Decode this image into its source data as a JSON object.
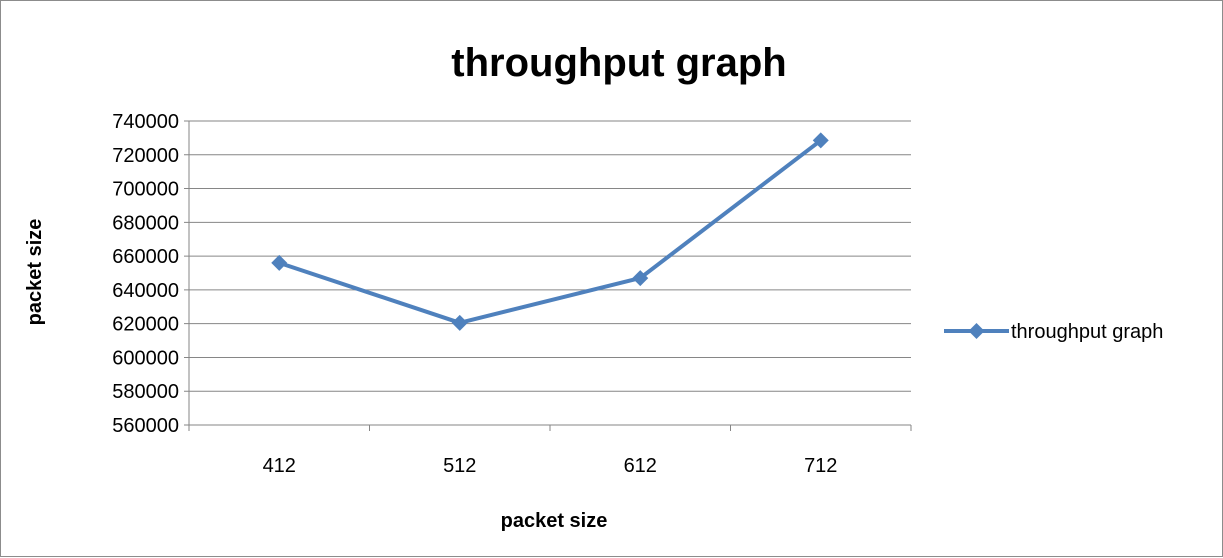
{
  "chart_data": {
    "type": "line",
    "title": "throughput graph",
    "xlabel": "packet size",
    "ylabel": "packet size",
    "categories": [
      "412",
      "512",
      "612",
      "712"
    ],
    "series": [
      {
        "name": "throughput graph",
        "values": [
          656000,
          620500,
          647000,
          728500
        ],
        "color": "#4f81bd",
        "marker": "diamond"
      }
    ],
    "ylim": [
      560000,
      740000
    ],
    "yticks": [
      "560000",
      "580000",
      "600000",
      "620000",
      "640000",
      "660000",
      "680000",
      "700000",
      "720000",
      "740000"
    ],
    "grid": true,
    "legend_position": "right"
  }
}
